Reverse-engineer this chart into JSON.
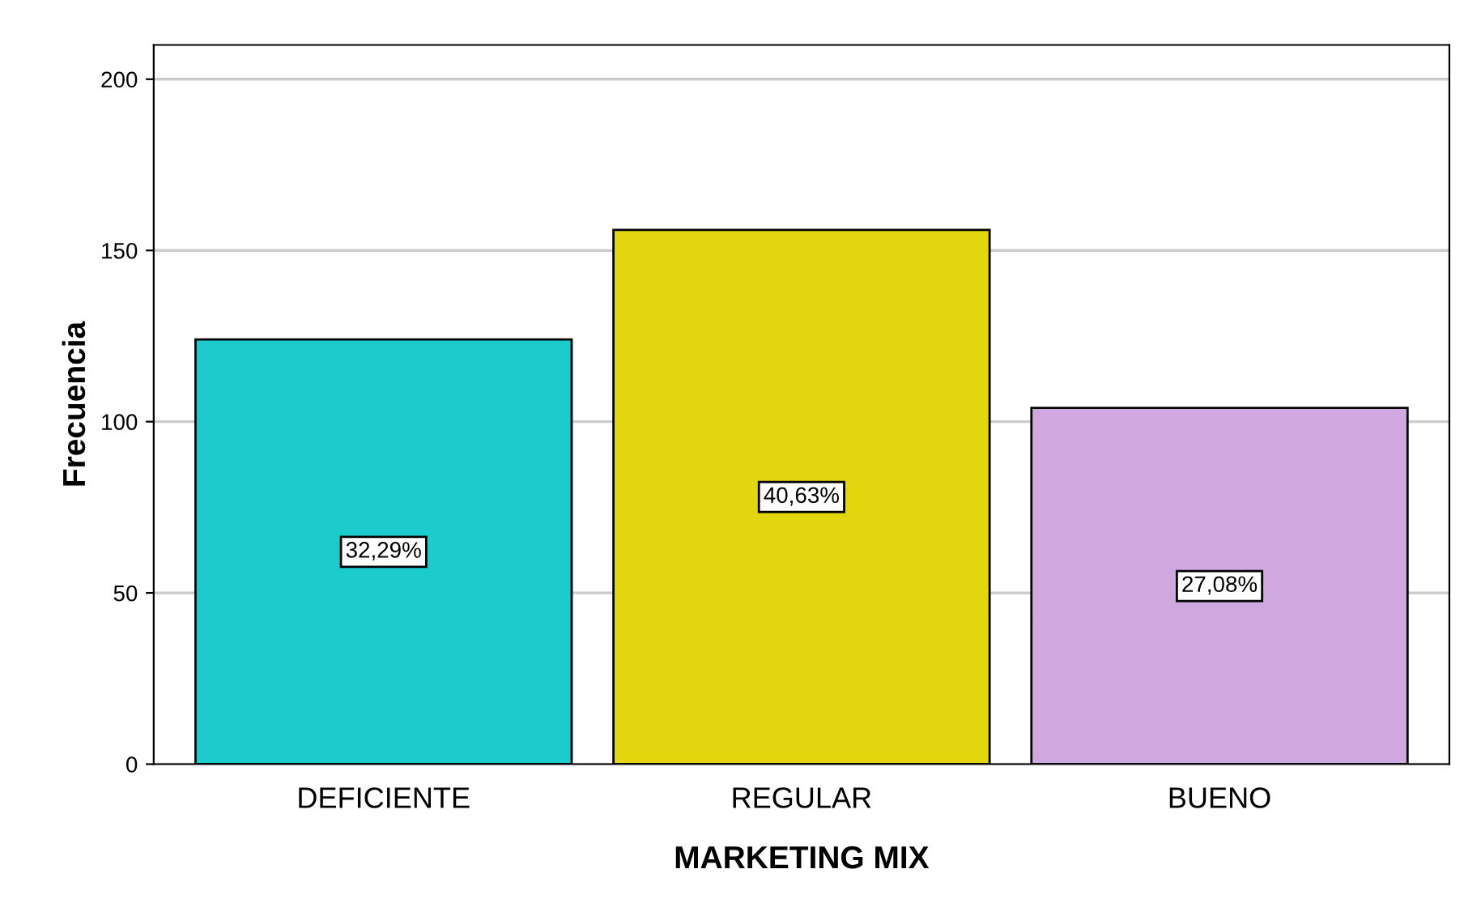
{
  "chart_data": {
    "type": "bar",
    "xlabel": "MARKETING MIX",
    "ylabel": "Frecuencia",
    "categories": [
      "DEFICIENTE",
      "REGULAR",
      "BUENO"
    ],
    "values": [
      124,
      156,
      104
    ],
    "colors": [
      "#1ccccc",
      "#e2d60f",
      "#cfa8e0"
    ],
    "annotations": [
      "32,29%",
      "40,63%",
      "27,08%"
    ],
    "ylim": [
      0,
      210
    ],
    "yticks": [
      0,
      50,
      100,
      150,
      200
    ],
    "grid": "y"
  }
}
